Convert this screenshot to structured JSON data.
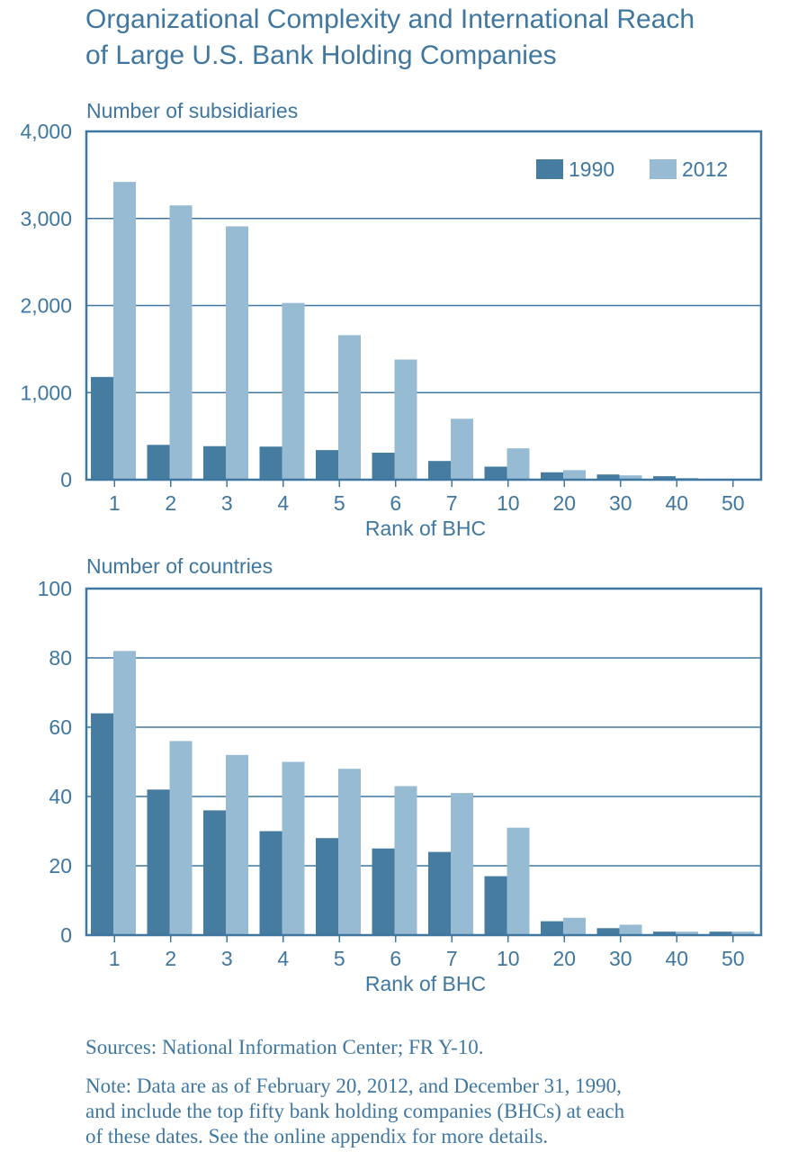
{
  "title": {
    "line1": "Organizational Complexity and International Reach",
    "line2": "of Large U.S. Bank Holding Companies"
  },
  "sources": "Sources: National Information Center; FR Y-10.",
  "note_lines": [
    "Note: Data are as of February 20, 2012, and December 31, 1990,",
    "and include the top fifty bank holding companies (BHCs) at each",
    "of these dates. See the online appendix for more details."
  ],
  "colors": {
    "s1990": "#457ca0",
    "s2012": "#98bbd4",
    "axis": "#3f77a0"
  },
  "chart_data": [
    {
      "type": "bar",
      "title": "Number of subsidiaries",
      "xlabel": "Rank of BHC",
      "categories": [
        "1",
        "2",
        "3",
        "4",
        "5",
        "6",
        "7",
        "10",
        "20",
        "30",
        "40",
        "50"
      ],
      "ylim": [
        0,
        4000
      ],
      "yticks": [
        0,
        1000,
        2000,
        3000,
        4000
      ],
      "ytick_labels": [
        "0",
        "1,000",
        "2,000",
        "3,000",
        "4,000"
      ],
      "grid": true,
      "legend": "top-right",
      "series": [
        {
          "name": "1990",
          "values": [
            1180,
            400,
            385,
            380,
            340,
            310,
            215,
            150,
            85,
            60,
            40,
            8
          ]
        },
        {
          "name": "2012",
          "values": [
            3420,
            3150,
            2910,
            2030,
            1660,
            1380,
            700,
            360,
            110,
            50,
            20,
            8
          ]
        }
      ]
    },
    {
      "type": "bar",
      "title": "Number of countries",
      "xlabel": "Rank of BHC",
      "categories": [
        "1",
        "2",
        "3",
        "4",
        "5",
        "6",
        "7",
        "10",
        "20",
        "30",
        "40",
        "50"
      ],
      "ylim": [
        0,
        100
      ],
      "yticks": [
        0,
        20,
        40,
        60,
        80,
        100
      ],
      "ytick_labels": [
        "0",
        "20",
        "40",
        "60",
        "80",
        "100"
      ],
      "grid": true,
      "legend": "none",
      "series": [
        {
          "name": "1990",
          "values": [
            64,
            42,
            36,
            30,
            28,
            25,
            24,
            17,
            4,
            2,
            1,
            1
          ]
        },
        {
          "name": "2012",
          "values": [
            82,
            56,
            52,
            50,
            48,
            43,
            41,
            31,
            5,
            3,
            1,
            1
          ]
        }
      ]
    }
  ]
}
